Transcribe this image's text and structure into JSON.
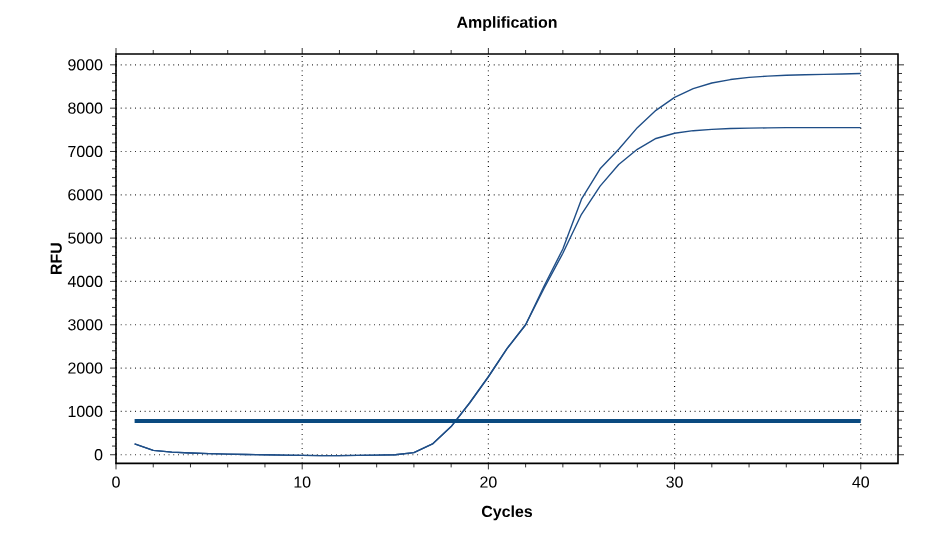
{
  "chart_data": {
    "type": "line",
    "title": "Amplification",
    "xlabel": "Cycles",
    "ylabel": "RFU",
    "x": [
      1,
      2,
      3,
      4,
      5,
      6,
      7,
      8,
      9,
      10,
      11,
      12,
      13,
      14,
      15,
      16,
      17,
      18,
      19,
      20,
      21,
      22,
      23,
      24,
      25,
      26,
      27,
      28,
      29,
      30,
      31,
      32,
      33,
      34,
      35,
      36,
      37,
      38,
      39,
      40
    ],
    "series": [
      {
        "color": "#1f4e87",
        "values": [
          250,
          100,
          60,
          40,
          25,
          15,
          5,
          0,
          -10,
          -15,
          -20,
          -20,
          -15,
          -10,
          0,
          50,
          250,
          650,
          1200,
          1800,
          2450,
          3000,
          3900,
          4750,
          5900,
          6600,
          7050,
          7550,
          7950,
          8250,
          8450,
          8580,
          8660,
          8710,
          8740,
          8760,
          8770,
          8780,
          8790,
          8800
        ]
      },
      {
        "color": "#1f4e87",
        "values": [
          250,
          100,
          60,
          40,
          25,
          15,
          5,
          0,
          -10,
          -15,
          -20,
          -20,
          -15,
          -10,
          0,
          50,
          250,
          650,
          1200,
          1800,
          2450,
          3000,
          3850,
          4650,
          5550,
          6200,
          6700,
          7050,
          7300,
          7420,
          7480,
          7510,
          7530,
          7540,
          7545,
          7550,
          7550,
          7550,
          7550,
          7550
        ]
      }
    ],
    "ref_lines": [
      {
        "axis": "y",
        "value": 780,
        "color": "#0a4a80"
      }
    ],
    "xlim": [
      0,
      42
    ],
    "ylim": [
      -200,
      9250
    ],
    "xticks": [
      0,
      10,
      20,
      30,
      40
    ],
    "yticks": [
      0,
      1000,
      2000,
      3000,
      4000,
      5000,
      6000,
      7000,
      8000,
      9000
    ],
    "grid": true,
    "legend": false,
    "marker": "none",
    "line_style": "solid"
  }
}
